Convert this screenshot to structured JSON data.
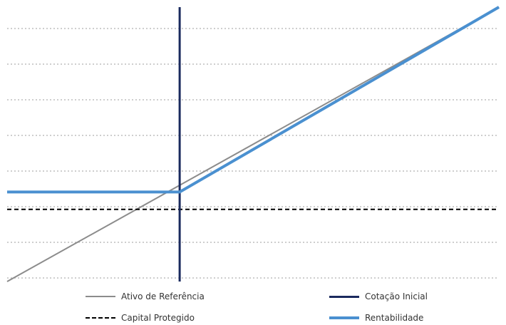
{
  "chart_data": {
    "type": "line",
    "title": "",
    "xlabel": "",
    "ylabel": "",
    "x_reference": 0,
    "xlim": [
      -1,
      1.85
    ],
    "ylim": [
      -0.5,
      1.4
    ],
    "grid": true,
    "legend_position": "bottom",
    "series": [
      {
        "name": "Ativo de Referência",
        "color": "#8c8c8c",
        "style": "solid",
        "x": [
          -1,
          1.85
        ],
        "y": [
          -0.5,
          1.4
        ]
      },
      {
        "name": "Cotação Inicial",
        "color": "#1a2a5e",
        "style": "solid",
        "orientation": "vertical",
        "x": [
          0,
          0
        ],
        "y": [
          -0.5,
          1.4
        ]
      },
      {
        "name": "Capital Protegido",
        "color": "#000000",
        "style": "dashed",
        "orientation": "horizontal",
        "x": [
          -1,
          1.85
        ],
        "y": [
          0,
          0
        ]
      },
      {
        "name": "Rentabilidade",
        "color": "#4a90d0",
        "style": "solid",
        "x": [
          -1,
          0,
          1.85
        ],
        "y": [
          0.12,
          0.12,
          1.4
        ]
      }
    ]
  },
  "legend": {
    "items": [
      {
        "label": "Ativo de Referência",
        "color": "#8c8c8c",
        "style": "solid"
      },
      {
        "label": "Cotação Inicial",
        "color": "#1a2a5e",
        "style": "solid"
      },
      {
        "label": "Capital Protegido",
        "color": "#000000",
        "style": "dashed"
      },
      {
        "label": "Rentabilidade",
        "color": "#4a90d0",
        "style": "solid"
      }
    ]
  }
}
